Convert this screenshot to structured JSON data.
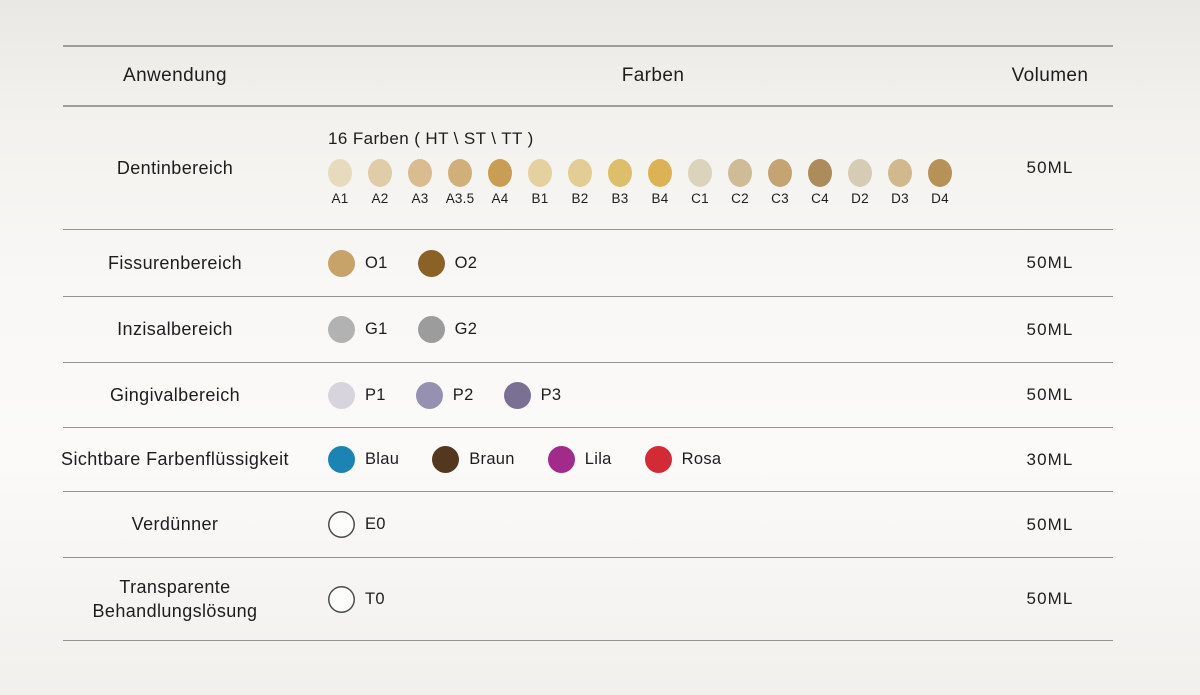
{
  "table": {
    "headers": [
      "Anwendung",
      "Farben",
      "Volumen"
    ],
    "rows": [
      {
        "application": "Dentinbereich",
        "volume": "50ML",
        "farben_title": "16 Farben ( HT \\ ST \\ TT )",
        "swatch_label_position": "below",
        "swatches": [
          {
            "label": "A1",
            "color": "#e8dabd"
          },
          {
            "label": "A2",
            "color": "#e0cca6"
          },
          {
            "label": "A3",
            "color": "#d9bd90"
          },
          {
            "label": "A3.5",
            "color": "#d0b078"
          },
          {
            "label": "A4",
            "color": "#ca9d55"
          },
          {
            "label": "B1",
            "color": "#e5d1a0"
          },
          {
            "label": "B2",
            "color": "#e3cd94"
          },
          {
            "label": "B3",
            "color": "#ddbe6a"
          },
          {
            "label": "B4",
            "color": "#dcb255"
          },
          {
            "label": "C1",
            "color": "#dcd3bd"
          },
          {
            "label": "C2",
            "color": "#cfbb96"
          },
          {
            "label": "C3",
            "color": "#c4a473"
          },
          {
            "label": "C4",
            "color": "#ad8c5b"
          },
          {
            "label": "D2",
            "color": "#d6cbb4"
          },
          {
            "label": "D3",
            "color": "#d2b98d"
          },
          {
            "label": "D4",
            "color": "#b69258"
          }
        ]
      },
      {
        "application": "Fissurenbereich",
        "volume": "50ML",
        "swatch_label_position": "right",
        "swatches": [
          {
            "label": "O1",
            "color": "#c8a369"
          },
          {
            "label": "O2",
            "color": "#8a6127"
          }
        ]
      },
      {
        "application": "Inzisalbereich",
        "volume": "50ML",
        "swatch_label_position": "right",
        "swatches": [
          {
            "label": "G1",
            "color": "#b2b2b2"
          },
          {
            "label": "G2",
            "color": "#9c9c9c"
          }
        ]
      },
      {
        "application": "Gingivalbereich",
        "volume": "50ML",
        "swatch_label_position": "right",
        "swatches": [
          {
            "label": "P1",
            "color": "#d7d4de"
          },
          {
            "label": "P2",
            "color": "#9691b0"
          },
          {
            "label": "P3",
            "color": "#7a7094"
          }
        ]
      },
      {
        "application": "Sichtbare Farbenflüssigkeit",
        "volume": "30ML",
        "swatch_label_position": "right",
        "swatches": [
          {
            "label": "Blau",
            "color": "#1b84b2"
          },
          {
            "label": "Braun",
            "color": "#54371f"
          },
          {
            "label": "Lila",
            "color": "#a22a8a"
          },
          {
            "label": "Rosa",
            "color": "#d32b35"
          }
        ]
      },
      {
        "application": "Verdünner",
        "volume": "50ML",
        "swatch_label_position": "right",
        "swatches": [
          {
            "label": "E0",
            "color": "#fdfdfc",
            "outline": "#4a4a4a"
          }
        ]
      },
      {
        "application": "Transparente Behandlungslösung",
        "volume": "50ML",
        "swatch_label_position": "right",
        "swatches": [
          {
            "label": "T0",
            "color": "#fdfdfc",
            "outline": "#4a4a4a"
          }
        ]
      }
    ]
  }
}
